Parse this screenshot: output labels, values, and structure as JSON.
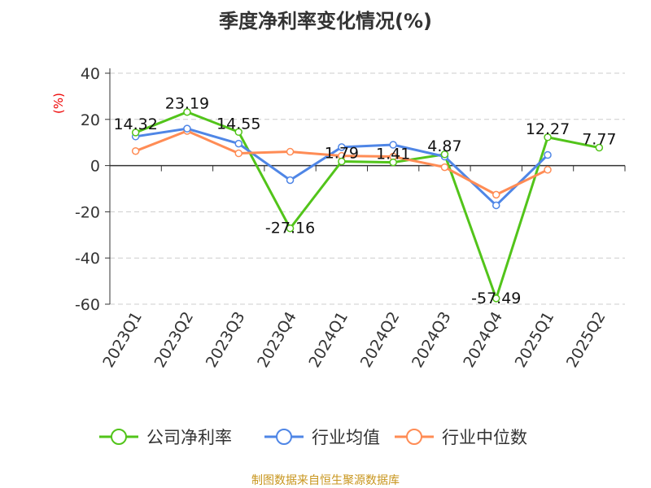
{
  "chart_data": {
    "type": "line",
    "title": "季度净利率变化情况(%)",
    "ylabel": "(%)",
    "xlabel": "",
    "categories": [
      "2023Q1",
      "2023Q2",
      "2023Q3",
      "2023Q4",
      "2024Q1",
      "2024Q2",
      "2024Q3",
      "2024Q4",
      "2025Q1",
      "2025Q2"
    ],
    "ylim": [
      -60,
      40
    ],
    "yticks": [
      40,
      20,
      0,
      -20,
      -40,
      -60
    ],
    "grid": true,
    "legend_position": "bottom",
    "series": [
      {
        "name": "公司净利率",
        "color": "#52c41a",
        "values": [
          14.32,
          23.19,
          14.55,
          -27.16,
          1.79,
          1.41,
          4.87,
          -57.49,
          12.27,
          7.77
        ],
        "labels": [
          "14.32",
          "23.19",
          "14.55",
          "-27.16",
          "1.79",
          "1.41",
          "4.87",
          "-57.49",
          "12.27",
          "7.77"
        ]
      },
      {
        "name": "行业均值",
        "color": "#4f86e6",
        "values": [
          12.6,
          16.0,
          9.5,
          -6.3,
          8.0,
          9.0,
          3.9,
          -17.2,
          4.6,
          null
        ]
      },
      {
        "name": "行业中位数",
        "color": "#ff8c55",
        "values": [
          6.3,
          15.0,
          5.3,
          6.0,
          4.2,
          3.9,
          -0.7,
          -12.6,
          -1.8,
          null
        ]
      }
    ]
  },
  "footer": "制图数据来自恒生聚源数据库"
}
